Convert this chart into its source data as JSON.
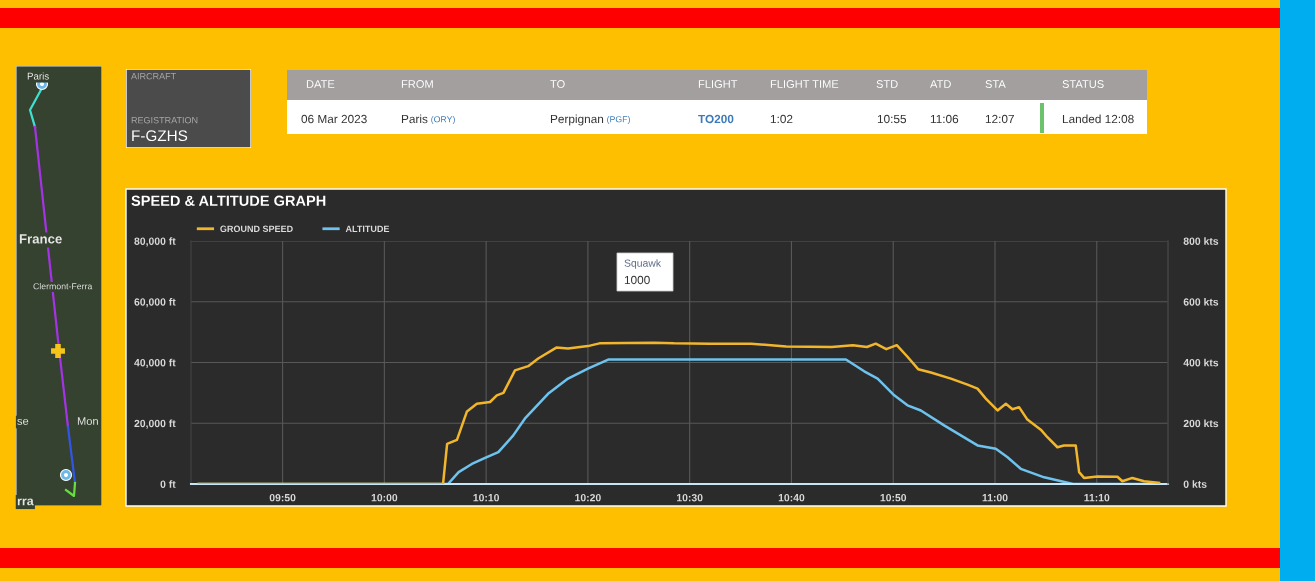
{
  "chart_data": [
    {
      "type": "other",
      "annotations": [
        "Paris",
        "France",
        "Clermont-Ferra",
        "se",
        "Mon",
        "rra"
      ]
    },
    {
      "type": "other",
      "annotations": [
        "AIRCRAFT",
        "REGISTRATION",
        "F-GZHS"
      ]
    },
    {
      "type": "other",
      "annotations": [
        "DATE",
        "FROM",
        "TO",
        "FLIGHT",
        "FLIGHT TIME",
        "STD",
        "ATD",
        "STA",
        "STATUS",
        "06 Mar 2023",
        "Paris",
        "(ORY)",
        "Perpignan",
        "(PGF)",
        "TO200",
        "1:02",
        "10:55",
        "11:06",
        "12:07",
        "Landed 12:08"
      ]
    },
    {
      "type": "line",
      "title": "SPEED & ALTITUDE GRAPH",
      "annotations": [
        "Squawk",
        "1000"
      ],
      "series": [
        {
          "name": "GROUND SPEED",
          "color": "#f2b62c",
          "axis": "y2",
          "x": [
            "2023-03-06T09:41:46",
            "2023-03-06T10:05:46",
            "2023-03-06T10:06:10",
            "2023-03-06T10:07:08",
            "2023-03-06T10:08:07",
            "2023-03-06T10:09:05",
            "2023-03-06T10:10:23",
            "2023-03-06T10:11:03",
            "2023-03-06T10:11:42",
            "2023-03-06T10:12:50",
            "2023-03-06T10:14:08",
            "2023-03-06T10:15:07",
            "2023-03-06T10:16:54",
            "2023-03-06T10:18:03",
            "2023-03-06T10:20:00",
            "2023-03-06T10:21:08",
            "2023-03-06T10:26:31",
            "2023-03-06T10:28:28",
            "2023-03-06T10:32:00",
            "2023-03-06T10:36:02",
            "2023-03-06T10:39:29",
            "2023-03-06T10:43:58",
            "2023-03-06T10:46:02",
            "2023-03-06T10:47:25",
            "2023-03-06T10:48:17",
            "2023-03-06T10:49:19",
            "2023-03-06T10:50:21",
            "2023-03-06T10:51:24",
            "2023-03-06T10:52:27",
            "2023-03-06T10:53:42",
            "2023-03-06T10:55:40",
            "2023-03-06T10:57:18",
            "2023-03-06T10:58:17",
            "2023-03-06T10:59:06",
            "2023-03-06T11:00:15",
            "2023-03-06T11:01:04",
            "2023-03-06T11:01:43",
            "2023-03-06T11:02:22",
            "2023-03-06T11:03:11",
            "2023-03-06T11:04:30",
            "2023-03-06T11:05:09",
            "2023-03-06T11:06:08",
            "2023-03-06T11:06:47",
            "2023-03-06T11:07:56",
            "2023-03-06T11:08:16",
            "2023-03-06T11:08:45",
            "2023-03-06T11:10:04",
            "2023-03-06T11:12:02",
            "2023-03-06T11:12:31",
            "2023-03-06T11:13:30",
            "2023-03-06T11:14:39",
            "2023-03-06T11:16:07"
          ],
          "values": [
            0,
            0,
            132,
            145,
            239,
            264,
            270,
            292,
            300,
            374,
            388,
            413,
            449,
            446,
            454,
            463,
            465,
            463,
            462,
            462,
            453,
            451,
            457,
            451,
            462,
            444,
            457,
            419,
            378,
            367,
            347,
            327,
            314,
            281,
            242,
            264,
            246,
            253,
            212,
            179,
            154,
            121,
            127,
            127,
            39,
            20,
            25,
            24,
            9,
            20,
            9,
            4
          ]
        },
        {
          "name": "ALTITUDE",
          "color": "#6ec3ee",
          "x": [
            "2023-03-06T09:41:46",
            "2023-03-06T10:06:15",
            "2023-03-06T10:07:18",
            "2023-03-06T10:08:36",
            "2023-03-06T10:09:54",
            "2023-03-06T10:11:12",
            "2023-03-06T10:12:40",
            "2023-03-06T10:13:48",
            "2023-03-06T10:16:05",
            "2023-03-06T10:18:03",
            "2023-03-06T10:20:00",
            "2023-03-06T10:22:03",
            "2023-03-06T10:45:21",
            "2023-03-06T10:47:09",
            "2023-03-06T10:48:28",
            "2023-03-06T10:50:06",
            "2023-03-06T10:51:24",
            "2023-03-06T10:52:43",
            "2023-03-06T10:55:00",
            "2023-03-06T10:58:17",
            "2023-03-06T11:00:05",
            "2023-03-06T11:01:14",
            "2023-03-06T11:02:32",
            "2023-03-06T11:04:50",
            "2023-03-06T11:07:40",
            "2023-03-06T11:16:07"
          ],
          "values": [
            0,
            0,
            3900,
            6600,
            8600,
            10500,
            16000,
            21500,
            29700,
            34700,
            38000,
            41000,
            41000,
            37100,
            34700,
            29200,
            25900,
            24200,
            19300,
            12700,
            11600,
            8800,
            5000,
            2200,
            0,
            0
          ]
        }
      ],
      "xlim": [
        "2023-03-06T09:41",
        "2023-03-06T11:17"
      ],
      "xticks": [
        {
          "value": "2023-03-06T09:50",
          "label": "09:50"
        },
        {
          "value": "2023-03-06T10:00",
          "label": "10:00"
        },
        {
          "value": "2023-03-06T10:10",
          "label": "10:10"
        },
        {
          "value": "2023-03-06T10:20",
          "label": "10:20"
        },
        {
          "value": "2023-03-06T10:30",
          "label": "10:30"
        },
        {
          "value": "2023-03-06T10:40",
          "label": "10:40"
        },
        {
          "value": "2023-03-06T10:50",
          "label": "10:50"
        },
        {
          "value": "2023-03-06T11:00",
          "label": "11:00"
        },
        {
          "value": "2023-03-06T11:10",
          "label": "11:10"
        }
      ],
      "ylim": [
        0,
        80000
      ],
      "yticks": [
        {
          "value": 0,
          "label": "0 ft"
        },
        {
          "value": 20000,
          "label": "20,000 ft"
        },
        {
          "value": 40000,
          "label": "40,000 ft"
        },
        {
          "value": 60000,
          "label": "60,000 ft"
        },
        {
          "value": 80000,
          "label": "80,000 ft"
        }
      ],
      "y2lim": [
        0,
        800
      ],
      "y2ticks": [
        {
          "value": 0,
          "label": "0 kts"
        },
        {
          "value": 200,
          "label": "200 kts"
        },
        {
          "value": 400,
          "label": "400 kts"
        },
        {
          "value": 600,
          "label": "600 kts"
        },
        {
          "value": 800,
          "label": "800 kts"
        }
      ],
      "grid": true,
      "legend": "top left"
    }
  ]
}
